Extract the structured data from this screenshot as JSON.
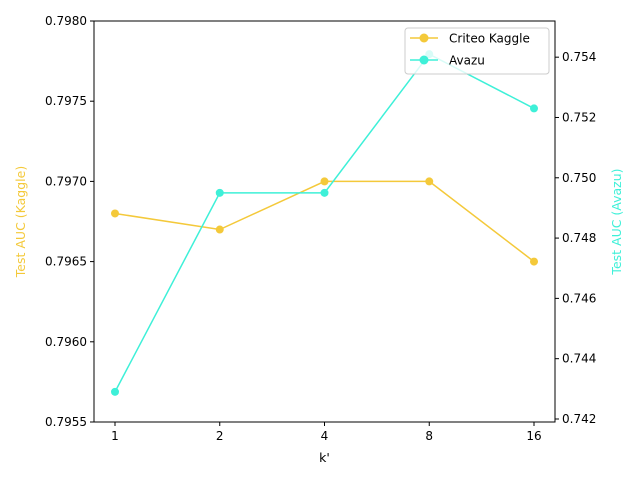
{
  "colors": {
    "kaggle": "#f4c93a",
    "avazu": "#3ef0d8",
    "axis": "#000000",
    "legend_border": "#cccccc"
  },
  "chart_data": {
    "type": "line",
    "categories": [
      "1",
      "2",
      "4",
      "8",
      "16"
    ],
    "xlabel": "k'",
    "ylabel_left": "Test AUC (Kaggle)",
    "ylabel_right": "Test AUC (Avazu)",
    "ylim_left": [
      0.7955,
      0.798
    ],
    "yticks_left": [
      "0.7955",
      "0.7960",
      "0.7965",
      "0.7970",
      "0.7975",
      "0.7980"
    ],
    "ylim_right": [
      0.7419,
      0.7552
    ],
    "yticks_right": [
      "0.742",
      "0.744",
      "0.746",
      "0.748",
      "0.750",
      "0.752",
      "0.754"
    ],
    "grid": false,
    "legend_position": "top-right",
    "series": [
      {
        "name": "Criteo Kaggle",
        "axis": "left",
        "color": "#f4c93a",
        "values": [
          0.7968,
          0.7967,
          0.797,
          0.797,
          0.7965
        ]
      },
      {
        "name": "Avazu",
        "axis": "right",
        "color": "#3ef0d8",
        "values": [
          0.7429,
          0.7495,
          0.7495,
          0.7541,
          0.7523
        ]
      }
    ]
  }
}
